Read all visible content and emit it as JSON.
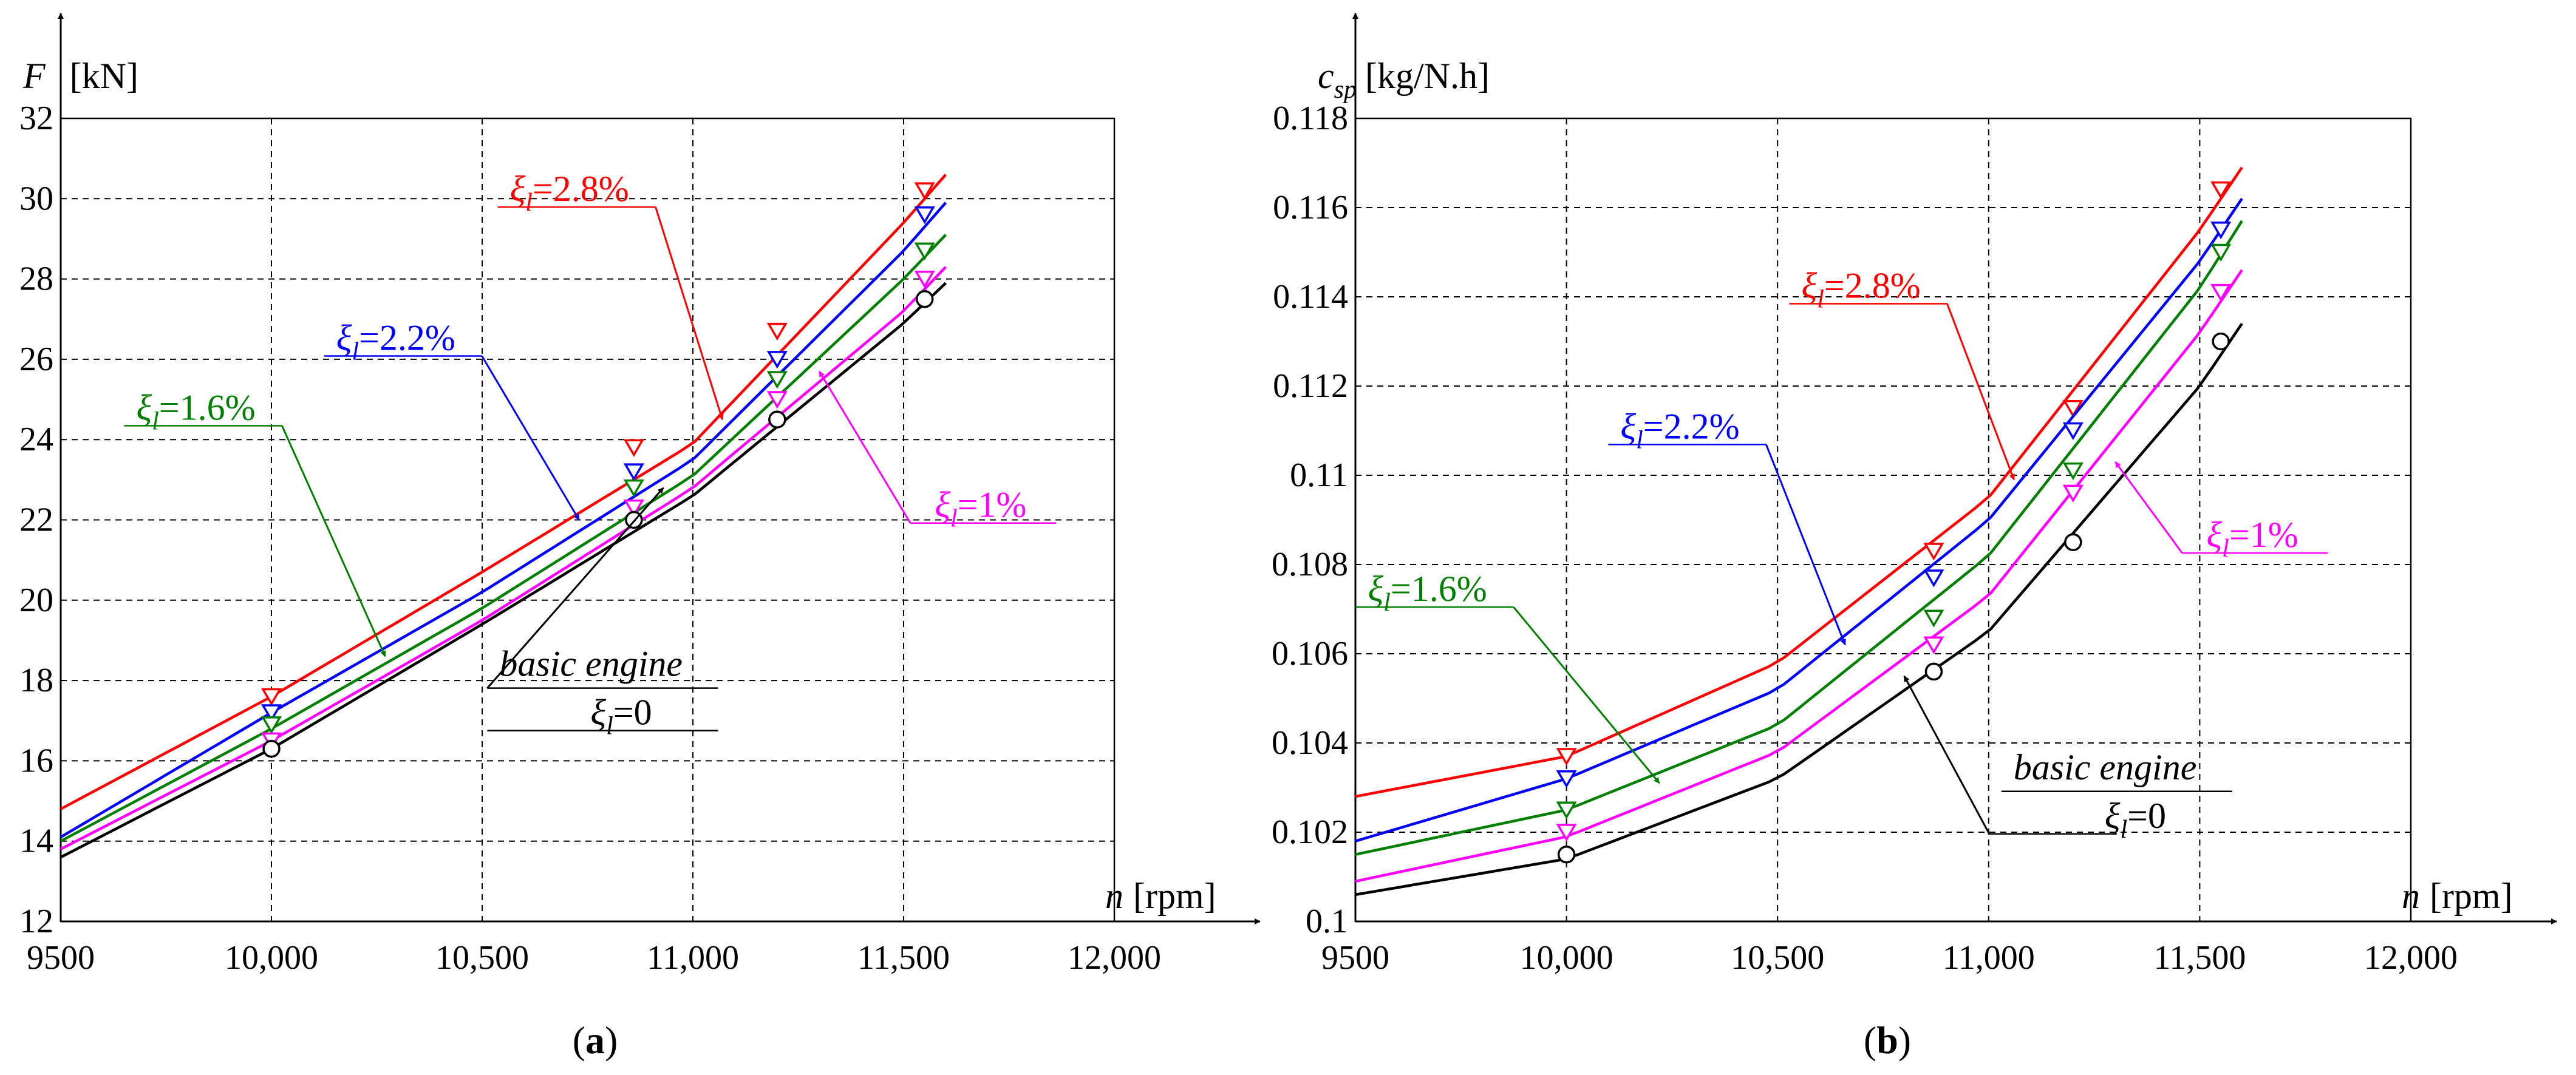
{
  "chart_data": [
    {
      "type": "line",
      "panel_label": "a",
      "ylabel_var": "F",
      "ylabel_unit": "[kN]",
      "xlabel_var": "n",
      "xlabel_unit": "[rpm]",
      "xlim": [
        9500,
        12000
      ],
      "ylim": [
        12,
        32
      ],
      "x_ticks": [
        9500,
        10000,
        10500,
        11000,
        11500,
        12000
      ],
      "x_tick_labels": [
        "9500",
        "10,000",
        "10,500",
        "11,000",
        "11,500",
        "12,000"
      ],
      "y_ticks": [
        12,
        14,
        16,
        18,
        20,
        22,
        24,
        26,
        28,
        30,
        32
      ],
      "y_tick_labels": [
        "12",
        "14",
        "16",
        "18",
        "20",
        "22",
        "24",
        "26",
        "28",
        "30",
        "32"
      ],
      "grid": true,
      "series": [
        {
          "name": "ξl=2.8%",
          "color": "#ff0000",
          "marker": "triangle-down",
          "x": [
            9500,
            10000,
            10500,
            11000,
            11500,
            11600
          ],
          "y": [
            14.8,
            17.6,
            20.7,
            23.9,
            29.4,
            30.6
          ],
          "marker_points": [
            [
              10000,
              17.6
            ],
            [
              10860,
              23.8
            ],
            [
              11200,
              26.7
            ],
            [
              11550,
              30.2
            ]
          ]
        },
        {
          "name": "ξl=2.2%",
          "color": "#0000ff",
          "marker": "triangle-down",
          "x": [
            9500,
            10000,
            10500,
            11000,
            11500,
            11600
          ],
          "y": [
            14.1,
            17.2,
            20.2,
            23.5,
            28.7,
            29.9
          ],
          "marker_points": [
            [
              10000,
              17.2
            ],
            [
              10860,
              23.2
            ],
            [
              11200,
              26.0
            ],
            [
              11550,
              29.6
            ]
          ]
        },
        {
          "name": "ξl=1.6%",
          "color": "#008000",
          "marker": "triangle-down",
          "x": [
            9500,
            10000,
            10500,
            11000,
            11500,
            11600
          ],
          "y": [
            14.0,
            16.8,
            19.8,
            23.1,
            28.0,
            29.1
          ],
          "marker_points": [
            [
              10000,
              16.9
            ],
            [
              10860,
              22.8
            ],
            [
              11200,
              25.5
            ],
            [
              11550,
              28.7
            ]
          ]
        },
        {
          "name": "ξl=1%",
          "color": "#ff00ff",
          "marker": "triangle-down",
          "x": [
            9500,
            10000,
            10500,
            11000,
            11500,
            11600
          ],
          "y": [
            13.8,
            16.5,
            19.5,
            22.8,
            27.2,
            28.3
          ],
          "marker_points": [
            [
              10000,
              16.5
            ],
            [
              10860,
              22.3
            ],
            [
              11200,
              25.0
            ],
            [
              11550,
              28.0
            ]
          ]
        },
        {
          "name": "basic engine",
          "color": "#000000",
          "marker": "circle",
          "x": [
            9500,
            10000,
            10500,
            11000,
            11500,
            11600
          ],
          "y": [
            13.6,
            16.3,
            19.4,
            22.6,
            26.9,
            27.9
          ],
          "marker_points": [
            [
              10000,
              16.3
            ],
            [
              10860,
              22.0
            ],
            [
              11200,
              24.5
            ],
            [
              11550,
              27.5
            ]
          ]
        }
      ],
      "annotations": [
        {
          "symbol": "ξ",
          "sub": "l",
          "text": "=2.8%",
          "color": "#ff0000",
          "point": [
            11070,
            24.5
          ]
        },
        {
          "symbol": "ξ",
          "sub": "l",
          "text": "=2.2%",
          "color": "#0000ff",
          "point": [
            10730,
            22.0
          ]
        },
        {
          "symbol": "ξ",
          "sub": "l",
          "text": "=1.6%",
          "color": "#008000",
          "point": [
            10270,
            18.6
          ]
        },
        {
          "symbol": "ξ",
          "sub": "l",
          "text": "=1%",
          "color": "#ff00ff",
          "point": [
            11300,
            25.7
          ]
        },
        {
          "line1": "basic engine",
          "symbol": "ξ",
          "sub": "l",
          "text": "=0",
          "color": "#000000",
          "point": [
            10930,
            22.8
          ]
        }
      ]
    },
    {
      "type": "line",
      "panel_label": "b",
      "ylabel_var": "c",
      "ylabel_sub": "sp",
      "ylabel_unit": "[kg/N.h]",
      "xlabel_var": "n",
      "xlabel_unit": "[rpm]",
      "xlim": [
        9500,
        12000
      ],
      "ylim": [
        0.1,
        0.118
      ],
      "x_ticks": [
        9500,
        10000,
        10500,
        11000,
        11500,
        12000
      ],
      "x_tick_labels": [
        "9500",
        "10,000",
        "10,500",
        "11,000",
        "11,500",
        "12,000"
      ],
      "y_ticks": [
        0.1,
        0.102,
        0.104,
        0.106,
        0.108,
        0.11,
        0.112,
        0.114,
        0.116,
        0.118
      ],
      "y_tick_labels": [
        "0.1",
        "0.102",
        "0.104",
        "0.106",
        "0.108",
        "0.11",
        "0.112",
        "0.114",
        "0.116",
        "0.118"
      ],
      "grid": true,
      "series": [
        {
          "name": "ξl=2.8%",
          "color": "#ff0000",
          "marker": "triangle-down",
          "x": [
            9500,
            10000,
            10500,
            11000,
            11500,
            11600
          ],
          "y": [
            0.1028,
            0.1037,
            0.1058,
            0.1095,
            0.1155,
            0.1169
          ],
          "marker_points": [
            [
              10000,
              0.1037
            ],
            [
              10870,
              0.1083
            ],
            [
              11200,
              0.1115
            ],
            [
              11550,
              0.1164
            ]
          ]
        },
        {
          "name": "ξl=2.2%",
          "color": "#0000ff",
          "marker": "triangle-down",
          "x": [
            9500,
            10000,
            10500,
            11000,
            11500,
            11600
          ],
          "y": [
            0.1018,
            0.1032,
            0.1052,
            0.109,
            0.1148,
            0.1162
          ],
          "marker_points": [
            [
              10000,
              0.1032
            ],
            [
              10870,
              0.1077
            ],
            [
              11200,
              0.111
            ],
            [
              11550,
              0.1155
            ]
          ]
        },
        {
          "name": "ξl=1.6%",
          "color": "#008000",
          "marker": "triangle-down",
          "x": [
            9500,
            10000,
            10500,
            11000,
            11500,
            11600
          ],
          "y": [
            0.1015,
            0.1025,
            0.1044,
            0.1082,
            0.1142,
            0.1157
          ],
          "marker_points": [
            [
              10000,
              0.1025
            ],
            [
              10870,
              0.1068
            ],
            [
              11200,
              0.1101
            ],
            [
              11550,
              0.115
            ]
          ]
        },
        {
          "name": "ξl=1%",
          "color": "#ff00ff",
          "marker": "triangle-down",
          "x": [
            9500,
            10000,
            10500,
            11000,
            11500,
            11600
          ],
          "y": [
            0.1009,
            0.1019,
            0.1038,
            0.1073,
            0.1132,
            0.1146
          ],
          "marker_points": [
            [
              10000,
              0.102
            ],
            [
              10870,
              0.1062
            ],
            [
              11200,
              0.1096
            ],
            [
              11550,
              0.1141
            ]
          ]
        },
        {
          "name": "basic engine",
          "color": "#000000",
          "marker": "circle",
          "x": [
            9500,
            10000,
            10500,
            11000,
            11500,
            11600
          ],
          "y": [
            0.1006,
            0.1014,
            0.1032,
            0.1065,
            0.112,
            0.1134
          ],
          "marker_points": [
            [
              10000,
              0.1015
            ],
            [
              10870,
              0.1056
            ],
            [
              11200,
              0.1085
            ],
            [
              11550,
              0.113
            ]
          ]
        }
      ],
      "annotations": [
        {
          "symbol": "ξ",
          "sub": "l",
          "text": "=2.8%",
          "color": "#ff0000",
          "point": [
            11060,
            0.1099
          ]
        },
        {
          "symbol": "ξ",
          "sub": "l",
          "text": "=2.2%",
          "color": "#0000ff",
          "point": [
            10660,
            0.1062
          ]
        },
        {
          "symbol": "ξ",
          "sub": "l",
          "text": "=1.6%",
          "color": "#008000",
          "point": [
            10220,
            0.1031
          ]
        },
        {
          "symbol": "ξ",
          "sub": "l",
          "text": "=1%",
          "color": "#ff00ff",
          "point": [
            11300,
            0.1103
          ]
        },
        {
          "line1": "basic engine",
          "symbol": "ξ",
          "sub": "l",
          "text": "=0",
          "color": "#000000",
          "point": [
            10800,
            0.1055
          ]
        }
      ]
    }
  ]
}
